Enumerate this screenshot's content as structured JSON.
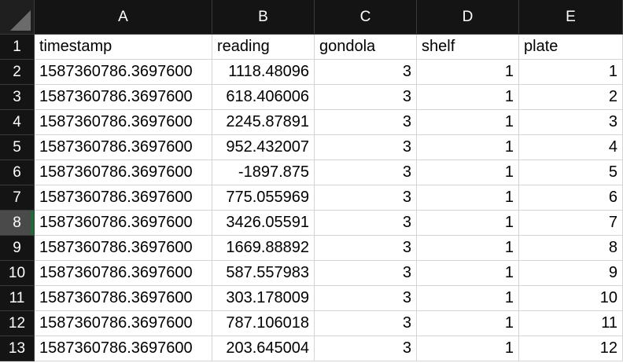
{
  "columns": [
    "A",
    "B",
    "C",
    "D",
    "E"
  ],
  "selected_row": "8",
  "rows": [
    {
      "num": "1",
      "a": "timestamp",
      "b": "reading",
      "c": "gondola",
      "d": "shelf",
      "e": "plate"
    },
    {
      "num": "2",
      "a": "1587360786.3697600",
      "b": "1118.48096",
      "c": "3",
      "d": "1",
      "e": "1"
    },
    {
      "num": "3",
      "a": "1587360786.3697600",
      "b": "618.406006",
      "c": "3",
      "d": "1",
      "e": "2"
    },
    {
      "num": "4",
      "a": "1587360786.3697600",
      "b": "2245.87891",
      "c": "3",
      "d": "1",
      "e": "3"
    },
    {
      "num": "5",
      "a": "1587360786.3697600",
      "b": "952.432007",
      "c": "3",
      "d": "1",
      "e": "4"
    },
    {
      "num": "6",
      "a": "1587360786.3697600",
      "b": "-1897.875",
      "c": "3",
      "d": "1",
      "e": "5"
    },
    {
      "num": "7",
      "a": "1587360786.3697600",
      "b": "775.055969",
      "c": "3",
      "d": "1",
      "e": "6"
    },
    {
      "num": "8",
      "a": "1587360786.3697600",
      "b": "3426.05591",
      "c": "3",
      "d": "1",
      "e": "7"
    },
    {
      "num": "9",
      "a": "1587360786.3697600",
      "b": "1669.88892",
      "c": "3",
      "d": "1",
      "e": "8"
    },
    {
      "num": "10",
      "a": "1587360786.3697600",
      "b": "587.557983",
      "c": "3",
      "d": "1",
      "e": "9"
    },
    {
      "num": "11",
      "a": "1587360786.3697600",
      "b": "303.178009",
      "c": "3",
      "d": "1",
      "e": "10"
    },
    {
      "num": "12",
      "a": "1587360786.3697600",
      "b": "787.106018",
      "c": "3",
      "d": "1",
      "e": "11"
    },
    {
      "num": "13",
      "a": "1587360786.3697600",
      "b": "203.645004",
      "c": "3",
      "d": "1",
      "e": "12"
    }
  ]
}
